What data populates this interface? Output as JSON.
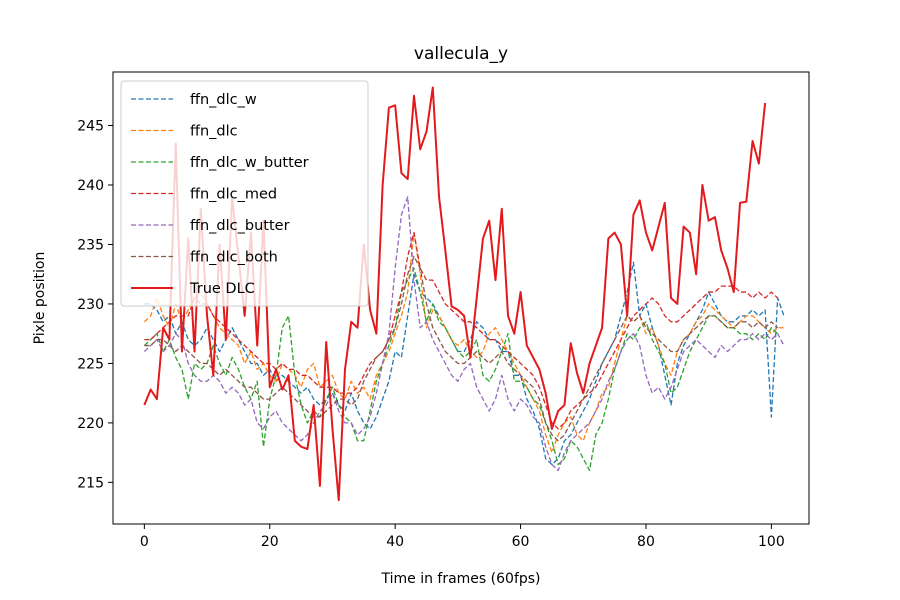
{
  "chart_data": {
    "type": "line",
    "title": "vallecula_y",
    "xlabel": "Time in frames (60fps)",
    "ylabel": "Pixle position",
    "xlim": [
      -5,
      106
    ],
    "ylim": [
      211.5,
      249.5
    ],
    "xticks": [
      0,
      20,
      40,
      60,
      80,
      100
    ],
    "yticks": [
      215,
      220,
      225,
      230,
      235,
      240,
      245
    ],
    "grid": false,
    "legend_position": "upper-left",
    "x_start": 0,
    "series": [
      {
        "name": "ffn_dlc_w",
        "color": "#1f77b4",
        "dash": "dashed",
        "values": [
          230,
          230,
          229.5,
          228.5,
          229,
          227.5,
          228.5,
          227,
          226.5,
          227,
          228,
          227,
          226,
          227,
          228,
          227,
          226,
          225,
          225,
          224,
          224.5,
          223.5,
          224,
          223.5,
          223,
          222.5,
          223,
          222,
          221.5,
          222,
          222.5,
          221.5,
          221,
          222.5,
          221,
          220,
          219.5,
          220.5,
          222,
          223.5,
          226,
          225.5,
          229,
          232.5,
          231,
          230.5,
          230,
          229,
          228,
          227,
          226,
          226,
          227,
          228.5,
          228,
          227,
          227,
          226,
          226,
          224,
          224,
          222,
          221,
          219.5,
          217,
          216.5,
          217,
          218.5,
          219,
          220,
          221,
          222,
          223.5,
          225,
          226,
          227,
          229,
          231,
          233.5,
          229,
          230,
          228,
          226.5,
          224,
          221.5,
          225,
          226.5,
          227.5,
          228.5,
          229.5,
          231,
          230,
          229,
          228.5,
          228.5,
          229,
          229,
          229.5,
          229,
          229.5,
          220.5,
          230.5,
          229
        ]
      },
      {
        "name": "ffn_dlc",
        "color": "#ff7f0e",
        "dash": "dashed",
        "values": [
          228.5,
          229,
          230.5,
          229,
          228,
          230,
          228.5,
          229.5,
          230.5,
          231,
          230,
          229,
          228,
          227.5,
          227,
          226.5,
          225,
          226,
          224.5,
          225,
          224,
          223.5,
          225,
          224.5,
          224,
          223,
          224.5,
          225,
          223,
          223.5,
          224,
          222.5,
          222,
          223.5,
          222.5,
          223,
          222,
          224,
          225,
          226,
          227.5,
          229,
          231,
          236,
          232.5,
          228,
          229.5,
          229,
          228,
          227,
          226.5,
          227,
          226,
          225.5,
          226,
          227.5,
          228,
          227,
          226,
          225,
          224,
          223,
          222,
          221,
          219,
          217.5,
          219,
          220,
          220.5,
          219,
          218.5,
          220,
          221,
          222.5,
          223,
          225,
          227,
          229,
          228.5,
          229,
          227.5,
          228,
          226.5,
          225,
          224,
          226,
          227,
          227.5,
          228.5,
          229,
          230,
          229.5,
          229,
          228.5,
          228,
          228.5,
          229,
          229,
          228.5,
          228,
          227.5,
          228,
          228
        ]
      },
      {
        "name": "ffn_dlc_w_butter",
        "color": "#2ca02c",
        "dash": "dashed",
        "values": [
          226.5,
          227,
          227.5,
          226,
          227,
          225.5,
          224.5,
          222,
          225,
          224.5,
          225,
          226.5,
          225,
          224,
          225.5,
          224.5,
          223,
          222,
          223.5,
          218,
          222,
          224,
          228,
          229,
          224,
          221.5,
          220,
          221,
          220.5,
          222,
          223,
          221.5,
          220.5,
          220,
          218.5,
          218.5,
          221,
          223.5,
          225,
          226.5,
          228,
          231,
          232,
          233,
          231,
          228.5,
          230,
          228.5,
          228,
          227,
          226,
          225.5,
          226,
          227,
          224,
          223.5,
          224.5,
          226,
          227.5,
          223.5,
          223.5,
          223,
          222,
          221.5,
          220,
          218.5,
          216.5,
          217,
          218.5,
          218,
          217,
          216,
          219,
          220,
          222,
          224.5,
          226,
          227.5,
          227,
          228,
          228.5,
          227,
          226,
          225,
          222.5,
          223,
          224.5,
          226,
          227,
          228,
          229,
          229,
          228.5,
          228,
          228,
          227.5,
          227.5,
          227,
          227.5,
          227,
          228,
          227.5
        ]
      },
      {
        "name": "ffn_dlc_med",
        "color": "#d62728",
        "dash": "dashed",
        "values": [
          227,
          227,
          227.5,
          228,
          228.5,
          229,
          229,
          229,
          230.5,
          230,
          230,
          229,
          228.5,
          228,
          227.5,
          227,
          226.5,
          226,
          225.5,
          225,
          225,
          224.5,
          225,
          224.5,
          224.5,
          224,
          224,
          223.5,
          223,
          223,
          223,
          222.5,
          222.5,
          222.5,
          223,
          224,
          225,
          225.5,
          226,
          227,
          229,
          231,
          234,
          236,
          233,
          232,
          232,
          231,
          230,
          229.5,
          229,
          228.5,
          228.5,
          228,
          227.5,
          227,
          227,
          226.5,
          226,
          225.5,
          225,
          224.5,
          224,
          223,
          221.5,
          220,
          219.5,
          220,
          221,
          221.5,
          222,
          222.5,
          223,
          224,
          225,
          226,
          227,
          228,
          229,
          229.5,
          230,
          230.5,
          230,
          229,
          228.5,
          228.5,
          229,
          229.5,
          230,
          230.5,
          231,
          231,
          231.5,
          231.5,
          231.5,
          231,
          231,
          230.5,
          231,
          230.5,
          231,
          230.5
        ]
      },
      {
        "name": "ffn_dlc_butter",
        "color": "#9467bd",
        "dash": "dashed",
        "values": [
          226,
          226.5,
          227,
          226,
          226.5,
          227.5,
          227,
          225,
          224,
          223.5,
          223.5,
          224,
          223.5,
          222.5,
          223,
          222.5,
          221.5,
          222,
          220,
          219.5,
          220.5,
          221,
          220,
          219.5,
          219,
          218.5,
          219,
          220,
          221,
          221.5,
          222.5,
          221,
          220,
          220,
          219,
          219.5,
          220.5,
          222.5,
          225,
          227.5,
          233,
          237.5,
          239,
          232,
          228,
          228.5,
          227,
          226,
          225,
          224,
          223.5,
          224.5,
          225,
          223,
          222,
          221,
          222,
          224,
          222,
          221,
          222,
          221.5,
          220.5,
          220,
          218,
          216.5,
          216,
          217.5,
          218.5,
          219,
          219.5,
          220,
          221,
          222,
          223.5,
          224.5,
          226,
          227,
          227.5,
          226.5,
          224,
          222.5,
          223,
          222,
          223,
          224.5,
          226,
          226.5,
          227,
          226.5,
          226,
          225.5,
          226.5,
          226,
          226.5,
          227,
          227,
          227.5,
          227,
          227.5,
          227,
          227.5,
          226.5
        ]
      },
      {
        "name": "ffn_dlc_both",
        "color": "#8c564b",
        "dash": "dashed",
        "values": [
          226.5,
          226.5,
          227,
          227,
          226.5,
          226,
          226.5,
          226,
          225.5,
          225,
          225,
          224.5,
          224,
          224.5,
          224,
          223.5,
          223,
          223,
          222.5,
          222,
          222,
          222.5,
          223,
          222.5,
          222,
          221.5,
          221,
          220.5,
          220.5,
          221,
          221.5,
          222,
          222,
          221.5,
          222,
          223.5,
          224.5,
          225.5,
          226,
          227,
          228,
          230,
          232.5,
          234,
          233,
          230,
          228,
          227,
          226,
          225.5,
          225,
          225,
          225.5,
          226,
          225.5,
          225,
          225.5,
          226,
          225,
          224.5,
          224,
          223.5,
          223,
          222,
          220,
          219,
          218.5,
          219,
          220,
          221,
          222,
          223,
          224,
          225,
          226,
          227,
          228,
          229,
          228.5,
          229,
          228,
          227.5,
          227,
          226.5,
          226,
          226,
          227,
          227.5,
          228,
          228.5,
          229,
          229,
          228.5,
          228,
          228,
          228.5,
          228.5,
          228,
          228.5,
          228,
          228.5,
          228
        ]
      },
      {
        "name": "True DLC",
        "color": "#e31a1c",
        "dash": "solid",
        "values": [
          221.5,
          222.8,
          222,
          228,
          227,
          243.5,
          226,
          235.5,
          226,
          238,
          229,
          224,
          235,
          227,
          239,
          234,
          229,
          236,
          226.5,
          237,
          223,
          224.5,
          222.8,
          224,
          218.5,
          218,
          217.8,
          221.5,
          214.7,
          226.8,
          219.5,
          213.5,
          224.5,
          228.5,
          228,
          235,
          229.5,
          227.5,
          240,
          246.5,
          246.7,
          241,
          240.5,
          247.5,
          243,
          244.5,
          248.2,
          239,
          234.5,
          229.8,
          229.5,
          229,
          225.5,
          230.5,
          235.5,
          237,
          232,
          238,
          229,
          227.5,
          231,
          226.5,
          225.5,
          224.5,
          222.5,
          219.5,
          221,
          221.5,
          226.7,
          224.2,
          222.5,
          225,
          226.5,
          228,
          235.5,
          236,
          235,
          229,
          237.5,
          238.7,
          236,
          234.5,
          236.5,
          238.5,
          230.5,
          230,
          236.5,
          236,
          232.5,
          240,
          237,
          237.3,
          234.5,
          233,
          231,
          238.5,
          238.6,
          243.7,
          241.8,
          246.9
        ]
      }
    ]
  }
}
